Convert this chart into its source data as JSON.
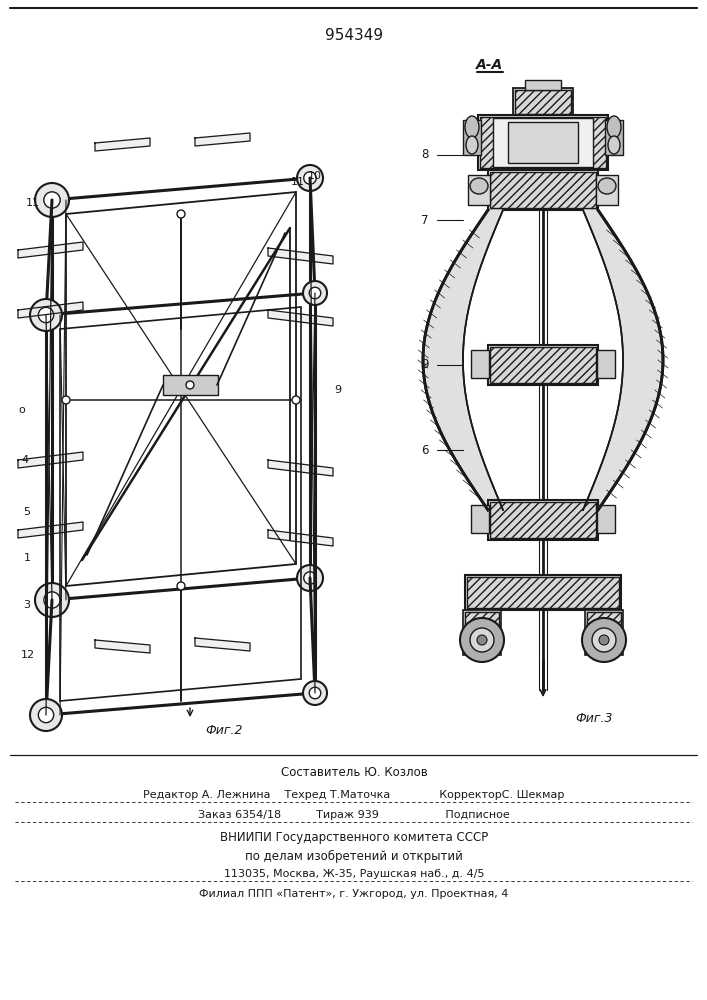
{
  "patent_number": "954349",
  "fig2_label": "Фиг.2",
  "fig3_label": "Фиг.3",
  "section_label": "А-А",
  "bottom_text": {
    "line1": "Составитель Ю. Козлов",
    "line2": "Редактор А. Лежнина    Техред Т.Маточка              КорректорС. Шекмар",
    "line3": "Заказ 6354/18          Тираж 939                   Подписное",
    "line4": "ВНИИПИ Государственного комитета СССР",
    "line5": "по делам изобретений и открытий",
    "line6": "113035, Москва, Ж-35, Раушская наб., д. 4/5",
    "line7": "Филиал ППП «Патент», г. Ужгород, ул. Проектная, 4"
  },
  "bg_color": "#ffffff",
  "line_color": "#1a1a1a",
  "text_color": "#1a1a1a"
}
